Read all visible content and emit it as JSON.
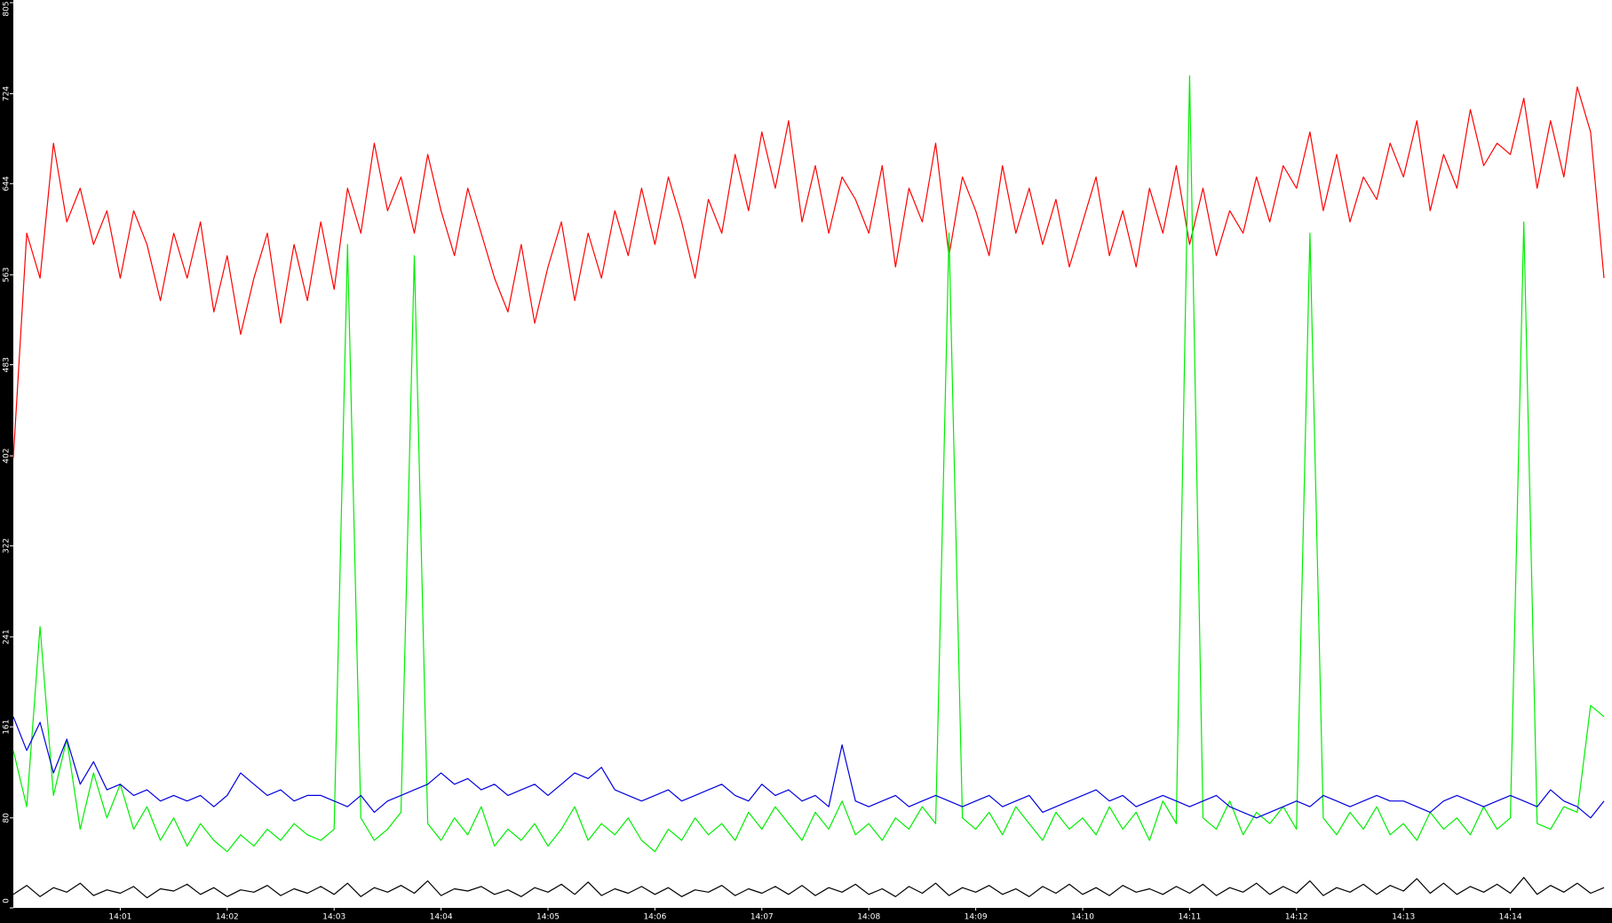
{
  "chart_data": {
    "type": "line",
    "x": [
      0,
      0.125,
      0.25,
      0.375,
      0.5,
      0.625,
      0.75,
      0.875,
      1,
      1.125,
      1.25,
      1.375,
      1.5,
      1.625,
      1.75,
      1.875,
      2,
      2.125,
      2.25,
      2.375,
      2.5,
      2.625,
      2.75,
      2.875,
      3,
      3.125,
      3.25,
      3.375,
      3.5,
      3.625,
      3.75,
      3.875,
      4,
      4.125,
      4.25,
      4.375,
      4.5,
      4.625,
      4.75,
      4.875,
      5,
      5.125,
      5.25,
      5.375,
      5.5,
      5.625,
      5.75,
      5.875,
      6,
      6.125,
      6.25,
      6.375,
      6.5,
      6.625,
      6.75,
      6.875,
      7,
      7.125,
      7.25,
      7.375,
      7.5,
      7.625,
      7.75,
      7.875,
      8,
      8.125,
      8.25,
      8.375,
      8.5,
      8.625,
      8.75,
      8.875,
      9,
      9.125,
      9.25,
      9.375,
      9.5,
      9.625,
      9.75,
      9.875,
      10,
      10.125,
      10.25,
      10.375,
      10.5,
      10.625,
      10.75,
      10.875,
      11,
      11.125,
      11.25,
      11.375,
      11.5,
      11.625,
      11.75,
      11.875,
      12,
      12.125,
      12.25,
      12.375,
      12.5,
      12.625,
      12.75,
      12.875,
      13,
      13.125,
      13.25,
      13.375,
      13.5,
      13.625,
      13.75,
      13.875,
      14,
      14.125,
      14.25,
      14.375,
      14.5,
      14.625,
      14.75,
      14.875
    ],
    "series": [
      {
        "color": "#ff0000",
        "values": [
          400,
          600,
          560,
          680,
          610,
          640,
          590,
          620,
          560,
          620,
          590,
          540,
          600,
          560,
          610,
          530,
          580,
          510,
          560,
          600,
          520,
          590,
          540,
          610,
          550,
          640,
          600,
          680,
          620,
          650,
          600,
          670,
          620,
          580,
          640,
          600,
          560,
          530,
          590,
          520,
          570,
          610,
          540,
          600,
          560,
          620,
          580,
          640,
          590,
          650,
          610,
          560,
          630,
          600,
          670,
          620,
          690,
          640,
          700,
          610,
          660,
          600,
          650,
          630,
          600,
          660,
          570,
          640,
          610,
          680,
          580,
          650,
          620,
          580,
          660,
          600,
          640,
          590,
          630,
          570,
          610,
          650,
          580,
          620,
          570,
          640,
          600,
          660,
          590,
          640,
          580,
          620,
          600,
          650,
          610,
          660,
          640,
          690,
          620,
          670,
          610,
          650,
          630,
          680,
          650,
          700,
          620,
          670,
          640,
          710,
          660,
          680,
          670,
          720,
          640,
          700,
          650,
          730,
          690,
          560
        ]
      },
      {
        "color": "#00ee00",
        "values": [
          140,
          90,
          250,
          100,
          150,
          70,
          120,
          80,
          110,
          70,
          90,
          60,
          80,
          55,
          75,
          60,
          50,
          65,
          55,
          70,
          60,
          75,
          65,
          60,
          70,
          590,
          80,
          60,
          70,
          85,
          580,
          75,
          60,
          80,
          65,
          90,
          55,
          70,
          60,
          75,
          55,
          70,
          90,
          60,
          75,
          65,
          80,
          60,
          50,
          70,
          60,
          80,
          65,
          75,
          60,
          85,
          70,
          90,
          75,
          60,
          85,
          70,
          95,
          65,
          75,
          60,
          80,
          70,
          90,
          75,
          600,
          80,
          70,
          85,
          65,
          90,
          75,
          60,
          85,
          70,
          80,
          65,
          90,
          70,
          85,
          60,
          95,
          75,
          740,
          80,
          70,
          95,
          65,
          85,
          75,
          90,
          70,
          600,
          80,
          65,
          85,
          70,
          90,
          65,
          75,
          60,
          85,
          70,
          80,
          65,
          90,
          70,
          80,
          610,
          75,
          70,
          90,
          85,
          180,
          170
        ]
      },
      {
        "color": "#0000dd",
        "values": [
          170,
          140,
          165,
          120,
          150,
          110,
          130,
          105,
          110,
          100,
          105,
          95,
          100,
          95,
          100,
          90,
          100,
          120,
          110,
          100,
          105,
          95,
          100,
          100,
          95,
          90,
          100,
          85,
          95,
          100,
          105,
          110,
          120,
          110,
          115,
          105,
          110,
          100,
          105,
          110,
          100,
          110,
          120,
          115,
          125,
          105,
          100,
          95,
          100,
          105,
          95,
          100,
          105,
          110,
          100,
          95,
          110,
          100,
          105,
          95,
          100,
          90,
          145,
          95,
          90,
          95,
          100,
          90,
          95,
          100,
          95,
          90,
          95,
          100,
          90,
          95,
          100,
          85,
          90,
          95,
          100,
          105,
          95,
          100,
          90,
          95,
          100,
          95,
          90,
          95,
          100,
          90,
          85,
          80,
          85,
          90,
          95,
          90,
          100,
          95,
          90,
          95,
          100,
          95,
          95,
          90,
          85,
          95,
          100,
          95,
          90,
          95,
          100,
          95,
          90,
          105,
          95,
          90,
          80,
          95
        ]
      },
      {
        "color": "#000000",
        "values": [
          12,
          20,
          10,
          18,
          14,
          22,
          11,
          16,
          13,
          19,
          9,
          17,
          15,
          21,
          12,
          18,
          10,
          16,
          14,
          20,
          11,
          17,
          13,
          19,
          12,
          22,
          10,
          18,
          14,
          20,
          13,
          24,
          11,
          17,
          15,
          19,
          12,
          16,
          10,
          18,
          14,
          21,
          12,
          23,
          11,
          17,
          13,
          19,
          12,
          18,
          10,
          16,
          14,
          20,
          11,
          17,
          13,
          19,
          12,
          20,
          11,
          18,
          14,
          21,
          12,
          17,
          10,
          19,
          13,
          22,
          11,
          18,
          14,
          20,
          12,
          17,
          10,
          19,
          13,
          21,
          12,
          18,
          11,
          20,
          14,
          17,
          12,
          19,
          13,
          21,
          11,
          18,
          14,
          22,
          12,
          19,
          13,
          24,
          11,
          18,
          14,
          21,
          12,
          20,
          15,
          26,
          13,
          22,
          12,
          19,
          14,
          21,
          13,
          27,
          12,
          20,
          14,
          22,
          13,
          18
        ]
      }
    ],
    "xlim": [
      0,
      14.95
    ],
    "ylim": [
      0,
      805
    ],
    "xticks": [
      {
        "value": 1,
        "label": "14:01"
      },
      {
        "value": 2,
        "label": "14:02"
      },
      {
        "value": 3,
        "label": "14:03"
      },
      {
        "value": 4,
        "label": "14:04"
      },
      {
        "value": 5,
        "label": "14:05"
      },
      {
        "value": 6,
        "label": "14:06"
      },
      {
        "value": 7,
        "label": "14:07"
      },
      {
        "value": 8,
        "label": "14:08"
      },
      {
        "value": 9,
        "label": "14:09"
      },
      {
        "value": 10,
        "label": "14:10"
      },
      {
        "value": 11,
        "label": "14:11"
      },
      {
        "value": 12,
        "label": "14:12"
      },
      {
        "value": 13,
        "label": "14:13"
      },
      {
        "value": 14,
        "label": "14:14"
      }
    ],
    "yticks": [
      0,
      80,
      161,
      241,
      322,
      402,
      483,
      563,
      644,
      724,
      805
    ]
  }
}
